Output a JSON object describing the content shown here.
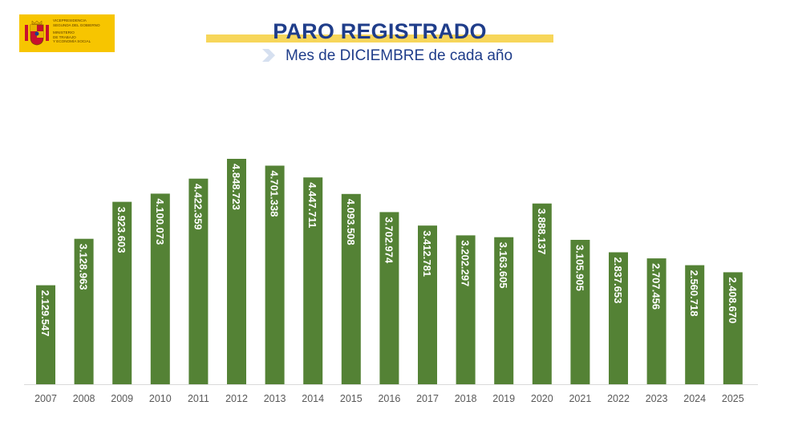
{
  "header": {
    "logo_lines": [
      "VICEPRESIDENCIA",
      "SEGUNDA DEL GOBIERNO",
      "MINISTERIO",
      "DE TRABAJO",
      "Y ECONOMÍA SOCIAL"
    ],
    "title": "PARO REGISTRADO",
    "subtitle": "Mes de DICIEMBRE de cada año"
  },
  "colors": {
    "bar": "#548235",
    "title": "#1f3d8a",
    "title_band": "#f7d65a",
    "logo_bg": "#f7c500"
  },
  "chart_data": {
    "type": "bar",
    "title": "PARO REGISTRADO",
    "subtitle": "Mes de DICIEMBRE de cada año",
    "categories": [
      "2007",
      "2008",
      "2009",
      "2010",
      "2011",
      "2012",
      "2013",
      "2014",
      "2015",
      "2016",
      "2017",
      "2018",
      "2019",
      "2020",
      "2021",
      "2022",
      "2023",
      "2024",
      "2025"
    ],
    "values": [
      2129547,
      3128963,
      3923603,
      4100073,
      4422359,
      4848723,
      4701338,
      4447711,
      4093508,
      3702974,
      3412781,
      3202297,
      3163605,
      3888137,
      3105905,
      2837653,
      2707456,
      2560718,
      2408670
    ],
    "labels": [
      "2.129.547",
      "3.128.963",
      "3.923.603",
      "4.100.073",
      "4.422.359",
      "4.848.723",
      "4.701.338",
      "4.447.711",
      "4.093.508",
      "3.702.974",
      "3.412.781",
      "3.202.297",
      "3.163.605",
      "3.888.137",
      "3.105.905",
      "2.837.653",
      "2.707.456",
      "2.560.718",
      "2.408.670"
    ],
    "xlabel": "",
    "ylabel": "",
    "ylim": [
      0,
      4848723
    ],
    "grid": false,
    "legend": "none"
  }
}
